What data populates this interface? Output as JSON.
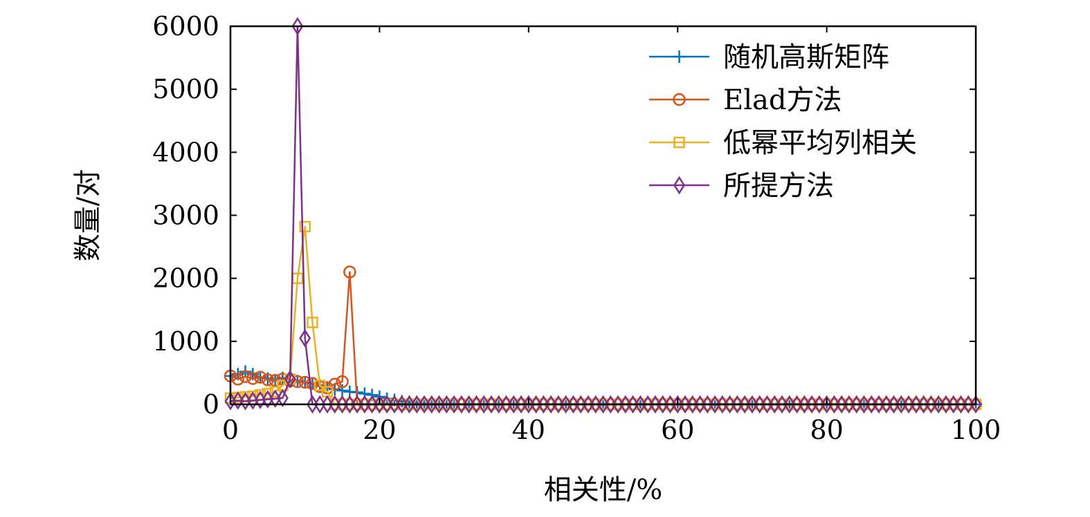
{
  "chart_data": {
    "type": "line",
    "xlabel": "相关性/%",
    "ylabel": "数量/对",
    "xlim": [
      0,
      100
    ],
    "ylim": [
      0,
      6000
    ],
    "xticks": [
      0,
      20,
      40,
      60,
      80,
      100
    ],
    "yticks": [
      0,
      1000,
      2000,
      3000,
      4000,
      5000,
      6000
    ],
    "grid": false,
    "legend_position": "top-right",
    "series": [
      {
        "name": "随机高斯矩阵",
        "color": "#0072BD",
        "marker": "plus",
        "x": [
          0,
          1,
          2,
          3,
          4,
          5,
          6,
          7,
          8,
          9,
          10,
          11,
          12,
          13,
          14,
          15,
          16,
          17,
          18,
          19,
          20,
          21,
          22,
          23,
          24,
          25,
          26,
          27,
          28,
          29,
          30,
          32,
          34,
          36,
          38,
          40,
          45,
          50,
          55,
          60,
          65,
          70,
          75,
          80,
          85,
          90,
          95,
          100
        ],
        "y": [
          450,
          480,
          520,
          480,
          430,
          410,
          380,
          420,
          380,
          370,
          350,
          330,
          300,
          270,
          240,
          220,
          200,
          190,
          170,
          150,
          120,
          90,
          70,
          50,
          35,
          25,
          15,
          10,
          6,
          4,
          2,
          1,
          1,
          0,
          0,
          0,
          0,
          0,
          0,
          0,
          0,
          0,
          0,
          0,
          0,
          0,
          0,
          0
        ]
      },
      {
        "name": "Elad方法",
        "color": "#D95319",
        "marker": "circle",
        "x": [
          0,
          1,
          2,
          3,
          4,
          5,
          6,
          7,
          8,
          9,
          10,
          11,
          12,
          13,
          14,
          15,
          16,
          17,
          18,
          19,
          20,
          21,
          22,
          23,
          24,
          25,
          26,
          27,
          28,
          29,
          30,
          31,
          32,
          33,
          34,
          35,
          36,
          37,
          38,
          39,
          40,
          41,
          42,
          43,
          44,
          45,
          46,
          47,
          48,
          49,
          50,
          51,
          52,
          53,
          54,
          55,
          56,
          57,
          58,
          59,
          60,
          61,
          62,
          63,
          64,
          65,
          66,
          67,
          68,
          69,
          70,
          71,
          72,
          73,
          74,
          75,
          76,
          77,
          78,
          79,
          80,
          81,
          82,
          83,
          84,
          85,
          86,
          87,
          88,
          89,
          90,
          91,
          92,
          93,
          94,
          95,
          96,
          97,
          98,
          99,
          100
        ],
        "y": [
          450,
          400,
          440,
          410,
          430,
          390,
          380,
          400,
          370,
          360,
          350,
          330,
          280,
          260,
          320,
          360,
          2100,
          0,
          0,
          0,
          0,
          0,
          0,
          0,
          0,
          0,
          0,
          0,
          0,
          0,
          0,
          0,
          0,
          0,
          0,
          0,
          0,
          0,
          0,
          0,
          0,
          0,
          0,
          0,
          0,
          0,
          0,
          0,
          0,
          0,
          0,
          0,
          0,
          0,
          0,
          0,
          0,
          0,
          0,
          0,
          0,
          0,
          0,
          0,
          0,
          0,
          0,
          0,
          0,
          0,
          0,
          0,
          0,
          0,
          0,
          0,
          0,
          0,
          0,
          0,
          0,
          0,
          0,
          0,
          0,
          0,
          0,
          0,
          0,
          0,
          0,
          0,
          0,
          0,
          0,
          0,
          0,
          0,
          0,
          0,
          0
        ]
      },
      {
        "name": "低幂平均列相关",
        "color": "#EDB120",
        "marker": "square",
        "x": [
          0,
          1,
          2,
          3,
          4,
          5,
          6,
          7,
          8,
          9,
          10,
          11,
          12,
          13,
          14,
          15,
          16,
          17,
          18,
          19,
          20,
          21,
          22,
          23,
          24,
          25,
          26,
          27,
          28,
          29,
          30,
          31,
          32,
          33,
          34,
          35,
          36,
          37,
          38,
          39,
          40,
          41,
          42,
          43,
          44,
          45,
          46,
          47,
          48,
          49,
          50,
          51,
          52,
          53,
          54,
          55,
          56,
          57,
          58,
          59,
          60,
          61,
          62,
          63,
          64,
          65,
          66,
          67,
          68,
          69,
          70,
          71,
          72,
          73,
          74,
          75,
          76,
          77,
          78,
          79,
          80,
          81,
          82,
          83,
          84,
          85,
          86,
          87,
          88,
          89,
          90,
          91,
          92,
          93,
          94,
          95,
          96,
          97,
          98,
          99,
          100
        ],
        "y": [
          100,
          110,
          120,
          130,
          150,
          170,
          200,
          300,
          400,
          2000,
          2820,
          1300,
          300,
          200,
          0,
          0,
          0,
          0,
          0,
          0,
          0,
          0,
          0,
          0,
          0,
          0,
          0,
          0,
          0,
          0,
          0,
          0,
          0,
          0,
          0,
          0,
          0,
          0,
          0,
          0,
          0,
          0,
          0,
          0,
          0,
          0,
          0,
          0,
          0,
          0,
          0,
          0,
          0,
          0,
          0,
          0,
          0,
          0,
          0,
          0,
          0,
          0,
          0,
          0,
          0,
          0,
          0,
          0,
          0,
          0,
          0,
          0,
          0,
          0,
          0,
          0,
          0,
          0,
          0,
          0,
          0,
          0,
          0,
          0,
          0,
          0,
          0,
          0,
          0,
          0,
          0,
          0,
          0,
          0,
          0,
          0,
          0,
          0,
          0,
          0,
          0
        ]
      },
      {
        "name": "所提方法",
        "color": "#7E2F8E",
        "marker": "diamond",
        "x": [
          0,
          1,
          2,
          3,
          4,
          5,
          6,
          7,
          8,
          9,
          10,
          11,
          12,
          13,
          14,
          15,
          16,
          17,
          18,
          19,
          20,
          21,
          22,
          23,
          24,
          25,
          26,
          27,
          28,
          29,
          30,
          31,
          32,
          33,
          34,
          35,
          36,
          37,
          38,
          39,
          40,
          41,
          42,
          43,
          44,
          45,
          46,
          47,
          48,
          49,
          50,
          51,
          52,
          53,
          54,
          55,
          56,
          57,
          58,
          59,
          60,
          61,
          62,
          63,
          64,
          65,
          66,
          67,
          68,
          69,
          70,
          71,
          72,
          73,
          74,
          75,
          76,
          77,
          78,
          79,
          80,
          81,
          82,
          83,
          84,
          85,
          86,
          87,
          88,
          89,
          90,
          91,
          92,
          93,
          94,
          95,
          96,
          97,
          98,
          99,
          100
        ],
        "y": [
          50,
          60,
          50,
          60,
          70,
          80,
          90,
          100,
          400,
          6000,
          1050,
          0,
          0,
          0,
          0,
          0,
          0,
          0,
          0,
          0,
          0,
          0,
          0,
          0,
          0,
          0,
          0,
          0,
          0,
          0,
          0,
          0,
          0,
          0,
          0,
          0,
          0,
          0,
          0,
          0,
          0,
          0,
          0,
          0,
          0,
          0,
          0,
          0,
          0,
          0,
          0,
          0,
          0,
          0,
          0,
          0,
          0,
          0,
          0,
          0,
          0,
          0,
          0,
          0,
          0,
          0,
          0,
          0,
          0,
          0,
          0,
          0,
          0,
          0,
          0,
          0,
          0,
          0,
          0,
          0,
          0,
          0,
          0,
          0,
          0,
          0,
          0,
          0,
          0,
          0,
          0,
          0,
          0,
          0,
          0,
          0,
          0,
          0,
          0,
          0,
          0
        ]
      }
    ]
  }
}
